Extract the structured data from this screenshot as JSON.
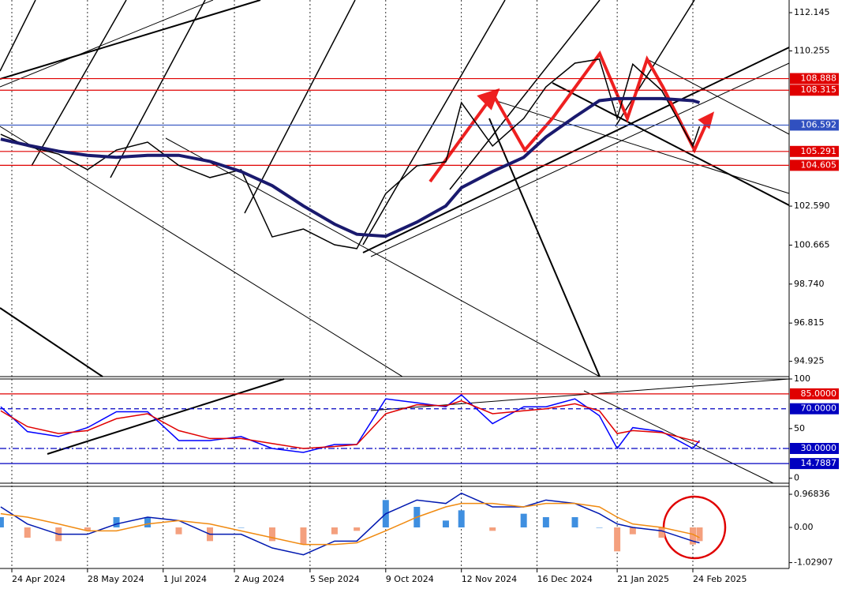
{
  "chart_data": [
    {
      "type": "line",
      "x": [
        "2024-04-19",
        "2024-05-01",
        "2024-05-15",
        "2024-05-28",
        "2024-06-10",
        "2024-06-24",
        "2024-07-08",
        "2024-07-22",
        "2024-08-05",
        "2024-08-19",
        "2024-09-02",
        "2024-09-16",
        "2024-09-26",
        "2024-10-09",
        "2024-10-23",
        "2024-11-05",
        "2024-11-12",
        "2024-11-26",
        "2024-12-10",
        "2024-12-20",
        "2025-01-02",
        "2025-01-13",
        "2025-01-21",
        "2025-01-28",
        "2025-02-10",
        "2025-02-24",
        "2025-02-27"
      ],
      "series": [
        {
          "color": "#000000",
          "values": [
            106.14,
            105.55,
            105.16,
            104.39,
            105.36,
            105.75,
            104.6,
            104.0,
            104.39,
            101.07,
            101.46,
            100.68,
            100.49,
            103.21,
            104.58,
            104.78,
            107.7,
            105.56,
            106.92,
            108.48,
            109.65,
            109.85,
            106.92,
            109.6,
            108.3,
            105.56,
            106.53
          ]
        },
        {
          "color": "#1a1a6e",
          "values": [
            105.9,
            105.6,
            105.3,
            105.1,
            105.0,
            105.1,
            105.1,
            104.8,
            104.3,
            103.6,
            102.6,
            101.7,
            101.2,
            101.1,
            101.8,
            102.6,
            103.5,
            104.3,
            105.0,
            106.0,
            107.0,
            107.8,
            107.9,
            107.9,
            107.9,
            107.8,
            107.7
          ]
        }
      ],
      "ylim": [
        94.17,
        112.77
      ],
      "yticks": [
        112.145,
        110.255,
        {
          "value": 102.59,
          "label": "102.590"
        },
        100.665,
        {
          "value": 98.74,
          "label": "98.740"
        },
        96.815,
        94.925
      ],
      "levels": [
        {
          "value": 108.888,
          "color": "#e00000"
        },
        {
          "value": 108.315,
          "color": "#e00000"
        },
        {
          "value": 106.592,
          "color": "#3050c0"
        },
        {
          "value": 105.291,
          "color": "#e00000"
        },
        {
          "value": 104.605,
          "color": "#e00000"
        }
      ]
    },
    {
      "type": "line",
      "x": [
        "2024-04-19",
        "2024-05-01",
        "2024-05-15",
        "2024-05-28",
        "2024-06-10",
        "2024-06-24",
        "2024-07-08",
        "2024-07-22",
        "2024-08-05",
        "2024-08-19",
        "2024-09-02",
        "2024-09-16",
        "2024-09-26",
        "2024-10-09",
        "2024-10-23",
        "2024-11-05",
        "2024-11-12",
        "2024-11-26",
        "2024-12-10",
        "2024-12-20",
        "2025-01-02",
        "2025-01-13",
        "2025-01-21",
        "2025-01-28",
        "2025-02-10",
        "2025-02-24",
        "2025-02-27"
      ],
      "series": [
        {
          "color": "#0000ff",
          "values": [
            72,
            47,
            42,
            51,
            67,
            67,
            38,
            38,
            42,
            30,
            26,
            34,
            34,
            80,
            76,
            72,
            84,
            55,
            72,
            72,
            80,
            63,
            30,
            51,
            47,
            30,
            38
          ]
        },
        {
          "color": "#e00000",
          "values": [
            68,
            52,
            45,
            48,
            60,
            65,
            48,
            40,
            40,
            35,
            30,
            32,
            34,
            65,
            74,
            73,
            78,
            65,
            68,
            70,
            75,
            68,
            45,
            48,
            46,
            38,
            36
          ]
        }
      ],
      "ylim": [
        -5,
        100
      ],
      "yticks": [
        100,
        50,
        0
      ],
      "levels": [
        {
          "value": 85,
          "label": "85.0000",
          "color": "#e00000"
        },
        {
          "value": 70,
          "label": "70.0000",
          "color": "#0000c0",
          "style": "dash"
        },
        {
          "value": 30,
          "label": "30.0000",
          "color": "#0000c0",
          "style": "dashdot"
        },
        {
          "value": 14.7887,
          "color": "#0000c0"
        }
      ]
    },
    {
      "type": "macd",
      "x": [
        "2024-04-19",
        "2024-05-01",
        "2024-05-15",
        "2024-05-28",
        "2024-06-10",
        "2024-06-24",
        "2024-07-08",
        "2024-07-22",
        "2024-08-05",
        "2024-08-19",
        "2024-09-02",
        "2024-09-16",
        "2024-09-26",
        "2024-10-09",
        "2024-10-23",
        "2024-11-05",
        "2024-11-12",
        "2024-11-26",
        "2024-12-10",
        "2024-12-20",
        "2025-01-02",
        "2025-01-13",
        "2025-01-21",
        "2025-01-28",
        "2025-02-10",
        "2025-02-24",
        "2025-02-27"
      ],
      "series": [
        {
          "type": "bar",
          "color": "#3f8fe0",
          "negative_color": "#f4a07e",
          "values": [
            0.3,
            -0.3,
            -0.4,
            -0.1,
            0.3,
            0.3,
            -0.2,
            -0.4,
            0.0,
            -0.4,
            -0.5,
            -0.2,
            -0.1,
            0.8,
            0.6,
            0.2,
            0.5,
            -0.1,
            0.4,
            0.3,
            0.3,
            0.0,
            -0.7,
            -0.2,
            -0.3,
            -0.5,
            -0.4
          ]
        },
        {
          "type": "line",
          "color": "#0018b0",
          "values": [
            0.6,
            0.1,
            -0.2,
            -0.2,
            0.1,
            0.3,
            0.2,
            -0.2,
            -0.2,
            -0.6,
            -0.8,
            -0.4,
            -0.4,
            0.4,
            0.8,
            0.7,
            1.0,
            0.6,
            0.6,
            0.8,
            0.7,
            0.4,
            0.1,
            0.0,
            -0.1,
            -0.4,
            -0.45
          ]
        },
        {
          "type": "line",
          "color": "#f08a10",
          "values": [
            0.4,
            0.3,
            0.1,
            -0.1,
            -0.1,
            0.1,
            0.2,
            0.1,
            -0.1,
            -0.3,
            -0.5,
            -0.5,
            -0.45,
            -0.1,
            0.3,
            0.6,
            0.7,
            0.7,
            0.6,
            0.7,
            0.7,
            0.6,
            0.3,
            0.1,
            0.0,
            -0.2,
            -0.3
          ]
        }
      ],
      "ylim": [
        -1.2,
        1.2
      ],
      "yticks": [
        0.96836,
        {
          "value": 0,
          "label": "0.00"
        },
        -1.02907
      ],
      "xticks": [
        {
          "value": "2024-04-24",
          "label": "24 Apr 2024"
        },
        {
          "value": "2024-05-28",
          "label": "28 May 2024"
        },
        {
          "value": "2024-07-01",
          "label": "1 Jul 2024"
        },
        {
          "value": "2024-08-02",
          "label": "2 Aug 2024"
        },
        {
          "value": "2024-09-05",
          "label": "5 Sep 2024"
        },
        {
          "value": "2024-10-09",
          "label": "9 Oct 2024"
        },
        {
          "value": "2024-11-12",
          "label": "12 Nov 2024"
        },
        {
          "value": "2024-12-16",
          "label": "16 Dec 2024"
        },
        {
          "value": "2025-01-21",
          "label": "21 Jan 2025"
        },
        {
          "value": "2025-02-24",
          "label": "24 Feb 2025"
        }
      ]
    }
  ]
}
